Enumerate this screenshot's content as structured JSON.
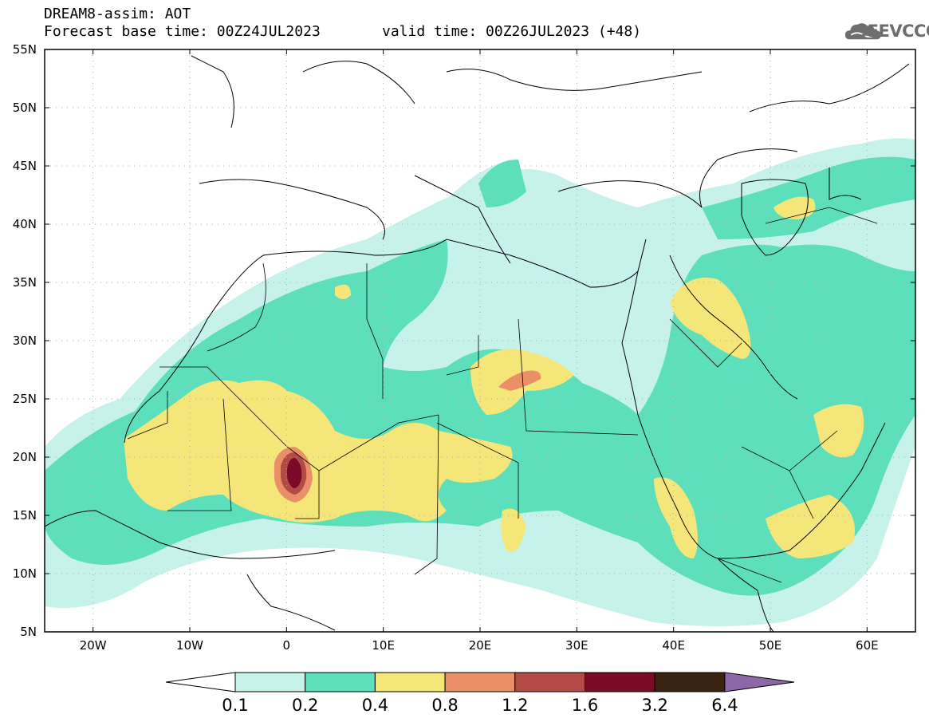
{
  "header": {
    "line1": "DREAM8-assim: AOT",
    "line2": "Forecast base time: 00Z24JUL2023",
    "valid": "valid time: 00Z26JUL2023 (+48)"
  },
  "logo": {
    "text": "SEEVCCC",
    "icon": "cloud-icon"
  },
  "map": {
    "lat_labels": [
      "55N",
      "50N",
      "45N",
      "40N",
      "35N",
      "30N",
      "25N",
      "20N",
      "15N",
      "10N",
      "5N"
    ],
    "lon_labels": [
      "20W",
      "10W",
      "0",
      "10E",
      "20E",
      "30E",
      "40E",
      "50E",
      "60E"
    ],
    "lat_range": [
      5,
      55
    ],
    "lon_range": [
      -25,
      65
    ]
  },
  "colorbar": {
    "labels": [
      "0.1",
      "0.2",
      "0.4",
      "0.8",
      "1.2",
      "1.6",
      "3.2",
      "6.4"
    ],
    "colors": [
      "#c7f2ea",
      "#5ddfbb",
      "#f5e679",
      "#ea8f68",
      "#b24a45",
      "#7c0a27",
      "#3b2312",
      "#8d67a8"
    ]
  },
  "contours": {
    "levels": [
      "0.1",
      "0.2",
      "0.4",
      "0.8",
      "1.2",
      "1.6"
    ],
    "colors": [
      "#c7f2ea",
      "#5ddfbb",
      "#f5e679",
      "#ea8f68",
      "#b24a45",
      "#7c0a27"
    ]
  }
}
